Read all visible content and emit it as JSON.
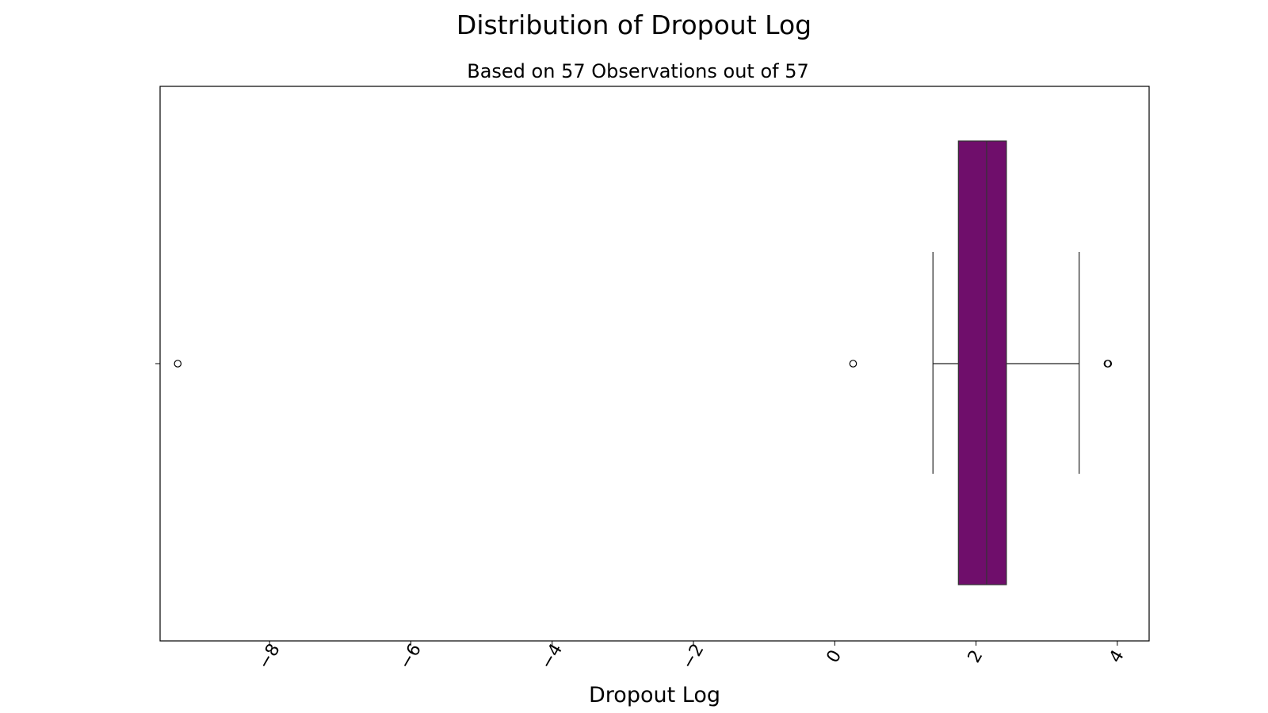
{
  "chart_data": {
    "type": "box",
    "title": "Distribution of Dropout Log",
    "subtitle": "Based on 57 Observations out of 57",
    "xlabel": "Dropout Log",
    "ylabel": "",
    "xlim": [
      -9.55,
      4.45
    ],
    "xticks": [
      -8,
      -6,
      -4,
      -2,
      0,
      2,
      4
    ],
    "xtick_labels": [
      "−8",
      "−6",
      "−4",
      "−2",
      "0",
      "2",
      "4"
    ],
    "orientation": "horizontal",
    "grid": false,
    "box": {
      "q1": 1.75,
      "median": 2.15,
      "q3": 2.43,
      "whisker_low": 1.39,
      "whisker_high": 3.46,
      "color": "#6f0e6b",
      "outliers": [
        -9.3,
        0.26,
        3.86,
        3.87
      ]
    }
  }
}
